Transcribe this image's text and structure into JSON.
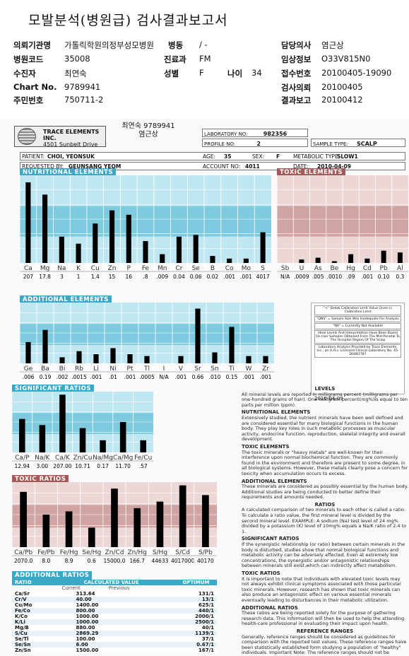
{
  "title": "모발분석(병원급) 검사결과보고서",
  "header": {
    "institution_label": "의뢰기관명",
    "institution": "가톨릭학원의정부성모병원",
    "ward_label": "병동",
    "ward": "/ -",
    "doctor_label": "담당의사",
    "doctor": "염근상",
    "hospital_code_label": "병원코드",
    "hospital_code": "35008",
    "dept_label": "진료과",
    "dept": "FM",
    "clinical_label": "임상정보",
    "clinical": "O33V815N0",
    "patient_label": "수진자",
    "patient": "최연숙",
    "sex_label": "성별",
    "sex": "F",
    "age_label": "나이",
    "age": "34",
    "receipt_label": "접수번호",
    "receipt": "20100405-19090",
    "chart_label": "Chart No.",
    "chart_no": "9789941",
    "request_label": "검사의뢰",
    "request_date": "20100405",
    "id_label": "주민번호",
    "id_no": "750711-2",
    "report_label": "결과보고",
    "report_date": "20100412"
  },
  "scan": {
    "top_name": "최연숙 9789941",
    "top_doctor": "염근상",
    "logo_text": "TRACE ELEMENTS INC.",
    "logo_addr": "4501 Sunbelt Drive",
    "lab_no_label": "LABORATORY NO:",
    "lab_no": "982356",
    "profile_label": "PROFILE NO:",
    "profile_no": "2",
    "sample_label": "SAMPLE TYPE:",
    "sample": "SCALP",
    "patient_label": "PATIENT:",
    "patient": "CHOI, YEONSUK",
    "age_label": "AGE:",
    "age": "35",
    "sex_label": "SEX:",
    "sex": "F",
    "metabolic_label": "METABOLIC TYPE:",
    "metabolic": "SLOW1",
    "requested_label": "REQUESTED BY:",
    "requested": "GEUNSANG YEOM",
    "account_label": "ACCOUNT NO:",
    "account": "4011",
    "date_label": "DATE:",
    "date": "2010-04-09",
    "nutritional_title": "NUTRITIONAL ELEMENTS",
    "toxic_title": "TOXIC ELEMENTS",
    "additional_title": "ADDITIONAL ELEMENTS",
    "significant_title": "SIGNIFICANT RATIOS",
    "toxic_ratios_title": "TOXIC RATIOS",
    "additional_ratios_title": "ADDITIONAL RATIOS",
    "report_date": "2010-04-09"
  },
  "chart_data": [
    {
      "type": "bar",
      "title": "NUTRITIONAL ELEMENTS",
      "categories": [
        "Ca",
        "Mg",
        "Na",
        "K",
        "Cu",
        "Zn",
        "P",
        "Fe",
        "Mn",
        "Cr",
        "Se",
        "B",
        "Co",
        "Mo",
        "S"
      ],
      "values": [
        207,
        17.8,
        3,
        1,
        1.4,
        15,
        16,
        0.8,
        0.009,
        0.04,
        0.06,
        0.02,
        0.001,
        0.001,
        4017
      ],
      "value_labels": [
        "207",
        "17.8",
        "3",
        "1",
        "1.4",
        "15",
        "16",
        ".8",
        ".009",
        "0.04",
        "0.06",
        "0.02",
        ".001",
        ".001",
        "4017"
      ],
      "bar_levels": [
        0.92,
        0.78,
        0.3,
        0.22,
        0.45,
        0.6,
        0.55,
        0.25,
        0.1,
        0.3,
        0.32,
        0.08,
        0.05,
        0.05,
        0.35
      ]
    },
    {
      "type": "bar",
      "title": "TOXIC ELEMENTS",
      "categories": [
        "Sb",
        "U",
        "As",
        "Be",
        "Hg",
        "Cd",
        "Pb",
        "Al"
      ],
      "value_labels": [
        "N/A",
        ".0009",
        ".005",
        ".0010",
        ".09",
        ".001",
        "0.10",
        "0.3"
      ],
      "bar_levels": [
        0,
        0.04,
        0.06,
        0.02,
        0.1,
        0.05,
        0.14,
        0.12
      ]
    },
    {
      "type": "bar",
      "title": "ADDITIONAL ELEMENTS",
      "categories": [
        "Ge",
        "Ba",
        "Bi",
        "Rb",
        "Li",
        "Ni",
        "Pt",
        "Tl",
        "I",
        "V",
        "Sr",
        "Sn",
        "Ti",
        "W",
        "Zr"
      ],
      "value_labels": [
        ".006",
        "0.19",
        ".002",
        ".0015",
        ".001",
        ".01",
        ".001",
        ".0005",
        "N/A",
        ".001",
        "0.66",
        ".010",
        "0.15",
        ".001",
        ".001"
      ],
      "bar_levels": [
        0.35,
        0.55,
        0.1,
        0.2,
        0.15,
        0.25,
        0.15,
        0.12,
        0,
        0.12,
        0.9,
        0.18,
        0.6,
        0.12,
        0.12
      ]
    },
    {
      "type": "bar",
      "title": "SIGNIFICANT RATIOS",
      "categories": [
        "Ca/P",
        "Na/K",
        "Ca/K",
        "Zn/Cu",
        "Na/Mg",
        "Ca/Mg",
        "Fe/Cu"
      ],
      "value_labels": [
        "12.94",
        "3.00",
        "207.00",
        "10.71",
        "0.17",
        "11.70",
        ".57"
      ],
      "bar_levels": [
        0.55,
        0.45,
        0.95,
        0.4,
        0.2,
        0.5,
        0.2
      ]
    },
    {
      "type": "bar",
      "title": "TOXIC RATIOS",
      "categories": [
        "Ca/Pb",
        "Fe/Pb",
        "Fe/Hg",
        "Se/Hg",
        "Zn/Cd",
        "Zn/Hg",
        "S/Hg",
        "S/Cd",
        "S/Pb"
      ],
      "value_labels": [
        "2070.0",
        "8.0",
        "8.9",
        "0.6",
        "15000.0",
        "166.7",
        "44633",
        "4017000",
        "40170"
      ],
      "bar_levels": [
        0.85,
        0.5,
        0.55,
        0.3,
        0.9,
        0.6,
        0.7,
        0.95,
        0.8
      ]
    }
  ],
  "additional_ratios": {
    "headers": [
      "RATIO",
      "CALCULATED VALUE",
      "OPTIMUM"
    ],
    "subheaders": [
      "Current",
      "Previous"
    ],
    "rows": [
      [
        "Ca/Sr",
        "313.64",
        "131/1"
      ],
      [
        "Cr/V",
        "40.00",
        "13/1"
      ],
      [
        "Cu/Mo",
        "1400.00",
        "625/1"
      ],
      [
        "Fe/Co",
        "800.00",
        "440/1"
      ],
      [
        "K/Co",
        "1000.00",
        "2000/1"
      ],
      [
        "K/Li",
        "1000.00",
        "2500/1"
      ],
      [
        "Mg/B",
        "880.00",
        "40/1"
      ],
      [
        "S/Cu",
        "2869.29",
        "1139/1"
      ],
      [
        "Se/Tl",
        "100.00",
        "37/1"
      ],
      [
        "Se/Sn",
        "6.00",
        "0.67/1"
      ],
      [
        "Zn/Sn",
        "1500.00",
        "167/1"
      ]
    ]
  },
  "legend_notes": [
    "\"<\" Below Calibration Limit Value Given is Calibration Limit",
    "\"QNS\" = Sample Size Was Inadequate For Analysis",
    "\"NA\" = Currently Not Available",
    "Ideal Levels And Interpretation Have Been Based On Hair Samples Obtained From The Mid-Parietal To The Occipital Region Of The Scalp",
    "Laboratory Analysis Provided by Trace Elements, Inc., an H.H.s. Licensed Clinical Laboratory No. 45-D0481787"
  ],
  "side_text": [
    {
      "h": "LEVELS",
      "p": "All mineral levels are reported in milligrams percent (milligrams per one-hundred grams of hair). One milligram percent(mg%)is equal to ten parts per million (ppm)."
    },
    {
      "h": "NUTRITIONAL ELEMENTS",
      "p": "Extensively studied, the nutrient minerals have been well defined and are considered essential for many biological functions in the human body. They play key roles in such metabolic processes as muscular activity, endocrine function, reproduction, skeletal integrity and overall development."
    },
    {
      "h": "TOXIC ELEMENTS",
      "p": "The toxic minerals or \"heavy metals\" are well-known for their interference upon normal biochemical function. They are commonly found in the environment and therefore are present to some degree, in all biological systems. However, these metals clearly pose a concern for toxicity when accumulation occurs to excess."
    },
    {
      "h": "ADDITIONAL ELEMENTS",
      "p": "These minerals are considered as possibly essential by the human body. Additional studies are being conducted to better define their requirements and amounts needed."
    },
    {
      "h": "RATIOS",
      "p": "A calculated comparison of two minerals to each other is called a ratio. To calculate a ratio value, the first mineral level is divided by the second mineral level. EXAMPLE: A sodium (Na) test level of 24 mg% divided by a potassium (K) level of 10mg% equals a Na/K ratio of 2.4 to 1."
    },
    {
      "h": "SIGNIFICANT RATIOS",
      "p": "If the synergistic relationship (or ratio) between certain minerals in the body is disturbed, studies show that normal biological functions and metabolic activity can be adversely affected. Even at extremely low concentrations, the synergistic and/or antagonistic relationships between minerals still exist,which can indirectly affect metabolism."
    },
    {
      "h": "TOXIC RATIOS",
      "p": "It is important to note that individuals with elevated toxic levels may not always exhibit clinical symptoms associated with those particular toxic minerals. However, research has shown that toxic minerals can also produce an antagonistic effect on various essential minerals eventually leading to disturbances in their metabolic utilization."
    },
    {
      "h": "ADDITIONAL RATIOS",
      "p": "These ratios are being reported solely for the purpose of gathering research data. This information will then be used to help the attending health-care professional in evaluating their impact upon health."
    },
    {
      "h": "REFERENCE RANGES",
      "p": "Generally, reference ranges should be considered as guidelines for comparison with the reported test values. These reference ranges have been statistically established form studying a population of \"healthy\" individuals. Important Note: The reference ranges should not be considered as absolute limits for determining deficiency, toxicity or acceptance."
    }
  ]
}
